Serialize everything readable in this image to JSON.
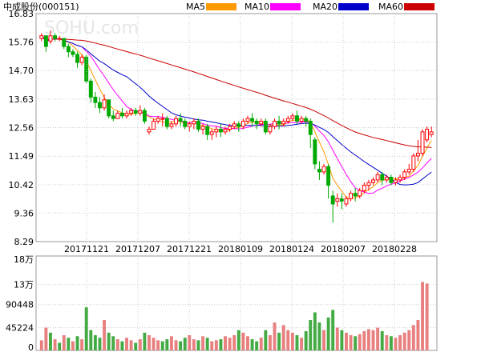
{
  "header": {
    "title": "中成股份(000151)",
    "watermark": "SOHU.com"
  },
  "legend": [
    {
      "label": "MA5",
      "color": "#ff9900"
    },
    {
      "label": "MA10",
      "color": "#ff00ff"
    },
    {
      "label": "MA20",
      "color": "#0000cc"
    },
    {
      "label": "MA60",
      "color": "#cc0000"
    }
  ],
  "colors": {
    "up": "#ff0000",
    "down": "#00aa00",
    "grid": "#cccccc",
    "volume_up": "#e88080",
    "volume_down": "#44aa44"
  },
  "chart_data": [
    {
      "type": "candlestick",
      "name": "price",
      "y_ticks": [
        "16.83",
        "15.76",
        "14.70",
        "13.63",
        "12.56",
        "11.49",
        "10.42",
        "9.36",
        "8.29"
      ],
      "ylim": [
        8.29,
        16.83
      ],
      "x_tick_labels": [
        "20171121",
        "20171207",
        "20171221",
        "20180109",
        "20180124",
        "20180207",
        "20180228"
      ],
      "candles": [
        [
          15.9,
          16.1,
          16.0,
          15.8
        ],
        [
          16.0,
          16.0,
          15.6,
          15.4
        ],
        [
          15.8,
          16.2,
          16.0,
          15.7
        ],
        [
          16.0,
          16.1,
          15.9,
          15.8
        ],
        [
          15.9,
          16.0,
          15.9,
          15.8
        ],
        [
          15.9,
          15.9,
          15.6,
          15.5
        ],
        [
          15.6,
          15.7,
          15.4,
          15.2
        ],
        [
          15.4,
          15.5,
          15.3,
          15.2
        ],
        [
          15.3,
          15.4,
          15.0,
          14.8
        ],
        [
          15.0,
          15.3,
          15.2,
          14.9
        ],
        [
          15.2,
          15.3,
          14.3,
          14.2
        ],
        [
          14.3,
          14.4,
          13.7,
          13.5
        ],
        [
          13.7,
          13.9,
          13.5,
          13.3
        ],
        [
          13.5,
          13.7,
          13.3,
          13.1
        ],
        [
          13.3,
          13.8,
          13.6,
          13.2
        ],
        [
          13.6,
          13.6,
          13.0,
          12.9
        ],
        [
          13.0,
          13.2,
          12.9,
          12.8
        ],
        [
          12.9,
          13.2,
          13.1,
          12.9
        ],
        [
          13.1,
          13.3,
          13.0,
          12.9
        ],
        [
          13.0,
          13.2,
          13.1,
          12.9
        ],
        [
          13.1,
          13.3,
          13.2,
          13.0
        ],
        [
          13.2,
          13.3,
          13.1,
          13.0
        ],
        [
          13.1,
          13.4,
          13.2,
          13.0
        ],
        [
          13.2,
          13.3,
          12.8,
          12.7
        ],
        [
          12.4,
          12.6,
          12.5,
          12.3
        ],
        [
          12.5,
          12.9,
          12.8,
          12.5
        ],
        [
          12.8,
          13.0,
          12.9,
          12.7
        ],
        [
          12.9,
          13.1,
          12.9,
          12.6
        ],
        [
          12.9,
          13.0,
          12.6,
          12.5
        ],
        [
          12.6,
          12.8,
          12.7,
          12.5
        ],
        [
          12.7,
          13.0,
          12.9,
          12.6
        ],
        [
          12.9,
          13.1,
          12.8,
          12.6
        ],
        [
          12.8,
          12.9,
          12.6,
          12.5
        ],
        [
          12.6,
          12.8,
          12.7,
          12.4
        ],
        [
          12.7,
          12.9,
          12.8,
          12.5
        ],
        [
          12.8,
          12.9,
          12.5,
          12.4
        ],
        [
          12.5,
          12.7,
          12.6,
          12.3
        ],
        [
          12.6,
          12.7,
          12.3,
          12.1
        ],
        [
          12.3,
          12.5,
          12.4,
          12.1
        ],
        [
          12.4,
          12.6,
          12.5,
          12.2
        ],
        [
          12.5,
          12.7,
          12.4,
          12.2
        ],
        [
          12.4,
          12.6,
          12.5,
          12.3
        ],
        [
          12.5,
          12.7,
          12.6,
          12.4
        ],
        [
          12.6,
          12.8,
          12.7,
          12.5
        ],
        [
          12.7,
          12.8,
          12.6,
          12.4
        ],
        [
          12.6,
          12.9,
          12.8,
          12.5
        ],
        [
          12.8,
          13.0,
          12.9,
          12.7
        ],
        [
          12.9,
          13.1,
          12.8,
          12.6
        ],
        [
          12.8,
          12.9,
          12.7,
          12.5
        ],
        [
          12.7,
          12.9,
          12.8,
          12.6
        ],
        [
          12.8,
          12.9,
          12.4,
          12.3
        ],
        [
          12.4,
          12.7,
          12.6,
          12.3
        ],
        [
          12.6,
          12.9,
          12.8,
          12.5
        ],
        [
          12.8,
          13.0,
          12.7,
          12.5
        ],
        [
          12.7,
          12.9,
          12.8,
          12.6
        ],
        [
          12.8,
          13.0,
          12.9,
          12.7
        ],
        [
          12.9,
          13.1,
          13.0,
          12.8
        ],
        [
          13.0,
          13.2,
          12.8,
          12.7
        ],
        [
          12.8,
          13.0,
          12.9,
          12.7
        ],
        [
          12.9,
          13.0,
          12.8,
          12.6
        ],
        [
          12.8,
          12.9,
          12.3,
          11.8
        ],
        [
          12.1,
          12.2,
          11.2,
          11.0
        ],
        [
          11.0,
          11.3,
          10.9,
          10.6
        ],
        [
          10.9,
          11.2,
          11.1,
          10.8
        ],
        [
          11.1,
          11.2,
          10.4,
          9.9
        ],
        [
          10.0,
          10.2,
          9.7,
          9.0
        ],
        [
          9.8,
          10.1,
          9.9,
          9.6
        ],
        [
          9.9,
          10.1,
          9.8,
          9.5
        ],
        [
          9.7,
          10.0,
          9.9,
          9.6
        ],
        [
          9.9,
          10.2,
          10.1,
          9.8
        ],
        [
          10.1,
          10.3,
          10.0,
          9.8
        ],
        [
          10.0,
          10.3,
          10.2,
          9.9
        ],
        [
          10.2,
          10.5,
          10.4,
          10.1
        ],
        [
          10.4,
          10.6,
          10.5,
          10.2
        ],
        [
          10.5,
          10.7,
          10.6,
          10.4
        ],
        [
          10.6,
          10.9,
          10.8,
          10.5
        ],
        [
          10.8,
          10.9,
          10.6,
          10.4
        ],
        [
          10.6,
          10.8,
          10.7,
          10.5
        ],
        [
          10.7,
          10.8,
          10.5,
          10.4
        ],
        [
          10.5,
          10.7,
          10.6,
          10.4
        ],
        [
          10.6,
          10.8,
          10.7,
          10.5
        ],
        [
          10.7,
          11.0,
          10.9,
          10.6
        ],
        [
          10.9,
          11.2,
          11.0,
          10.8
        ],
        [
          11.0,
          11.6,
          11.5,
          10.9
        ],
        [
          11.5,
          12.1,
          11.6,
          11.3
        ],
        [
          11.6,
          12.5,
          12.4,
          11.5
        ],
        [
          12.1,
          12.6,
          12.5,
          12.0
        ],
        [
          12.3,
          12.6,
          12.4,
          12.2
        ]
      ]
    },
    {
      "type": "bar",
      "name": "volume",
      "y_ticks": [
        "18万",
        "13万",
        "90448",
        "45224",
        "0"
      ],
      "ylim": [
        0,
        180000
      ],
      "values": [
        20000,
        45000,
        35000,
        22000,
        15000,
        30000,
        25000,
        18000,
        28000,
        22000,
        85000,
        40000,
        30000,
        25000,
        60000,
        35000,
        28000,
        22000,
        18000,
        25000,
        20000,
        15000,
        22000,
        35000,
        30000,
        25000,
        20000,
        18000,
        22000,
        28000,
        20000,
        18000,
        25000,
        30000,
        22000,
        20000,
        28000,
        25000,
        18000,
        20000,
        22000,
        28000,
        25000,
        30000,
        40000,
        35000,
        28000,
        22000,
        18000,
        25000,
        40000,
        30000,
        55000,
        35000,
        50000,
        40000,
        35000,
        30000,
        25000,
        38000,
        60000,
        75000,
        55000,
        40000,
        65000,
        80000,
        45000,
        40000,
        35000,
        30000,
        28000,
        32000,
        38000,
        42000,
        40000,
        45000,
        38000,
        30000,
        28000,
        25000,
        30000,
        35000,
        40000,
        50000,
        60000,
        135000,
        132000,
        0
      ],
      "up": [
        true,
        true,
        false,
        true,
        false,
        true,
        false,
        true,
        false,
        true,
        false,
        false,
        false,
        false,
        true,
        false,
        false,
        true,
        false,
        true,
        true,
        false,
        true,
        false,
        true,
        true,
        true,
        false,
        false,
        true,
        true,
        false,
        false,
        true,
        true,
        false,
        true,
        false,
        true,
        true,
        false,
        true,
        true,
        true,
        false,
        true,
        true,
        false,
        false,
        true,
        false,
        true,
        true,
        false,
        true,
        true,
        true,
        false,
        true,
        false,
        false,
        false,
        false,
        true,
        false,
        false,
        true,
        false,
        true,
        true,
        false,
        true,
        true,
        true,
        true,
        true,
        false,
        true,
        false,
        true,
        true,
        true,
        true,
        true,
        true,
        true,
        true,
        true
      ]
    }
  ]
}
